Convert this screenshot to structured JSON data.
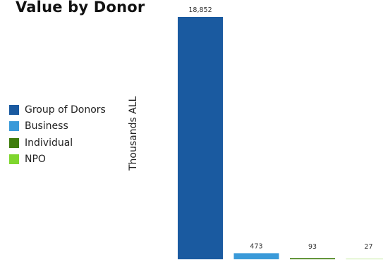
{
  "chart_data": {
    "type": "bar",
    "title": "Value by Donor",
    "ylabel": "Thousands ALL",
    "xlabel": "",
    "categories": [
      "Group of Donors",
      "Business",
      "Individual",
      "NPO"
    ],
    "values": [
      18852,
      473,
      93,
      27
    ],
    "data_labels": [
      "18,852",
      "473",
      "93",
      "27"
    ],
    "ylim": [
      0,
      18852
    ],
    "legend_position": "left",
    "grid": false,
    "colors": [
      "#1a5aa0",
      "#3a9ad9",
      "#3f7d0d",
      "#7fd62e"
    ]
  }
}
